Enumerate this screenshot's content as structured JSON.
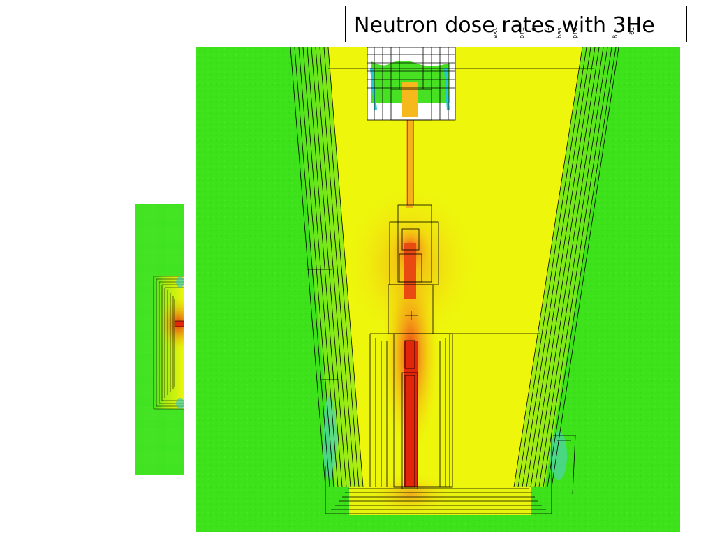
{
  "slide": {
    "title": "Neutron dose rates with 3He",
    "rotated_labels": [
      "ext",
      "ori",
      "0",
      "1",
      "bas",
      "pro",
      "BL-",
      "01"
    ]
  },
  "colors": {
    "background": "#ffffff",
    "field_green": "#39e51a",
    "inner_yellow": "#ecf70a",
    "hot_orange": "#f6a11e",
    "hot_red": "#e8260f",
    "low_cyan": "#25c8d8"
  }
}
